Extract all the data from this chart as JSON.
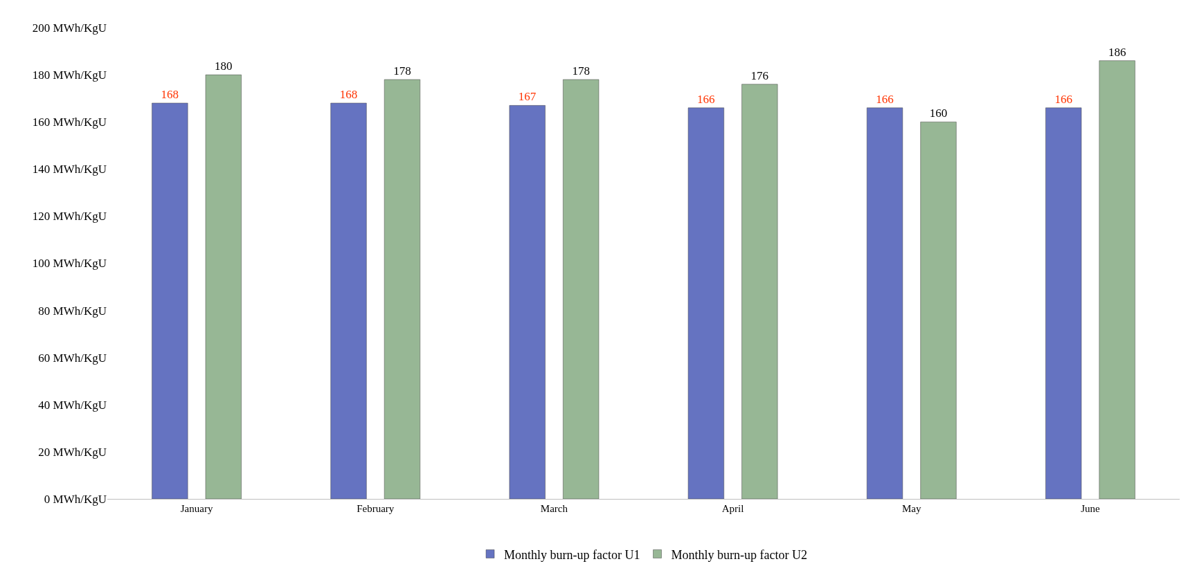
{
  "chart_data": {
    "type": "bar",
    "categories": [
      "January",
      "February",
      "March",
      "April",
      "May",
      "June"
    ],
    "series": [
      {
        "name": "Monthly burn-up factor U1",
        "color": "#6573c1",
        "values": [
          168,
          168,
          167,
          166,
          166,
          166
        ]
      },
      {
        "name": "Monthly burn-up factor U2",
        "color": "#97b795",
        "values": [
          180,
          178,
          178,
          176,
          160,
          186
        ]
      }
    ],
    "ylim": [
      0,
      200
    ],
    "yticks": [
      {
        "value": 0,
        "label": "0 MWh/KgU"
      },
      {
        "value": 20,
        "label": "20 MWh/KgU"
      },
      {
        "value": 40,
        "label": "40 MWh/KgU"
      },
      {
        "value": 60,
        "label": "60 MWh/KgU"
      },
      {
        "value": 80,
        "label": "80 MWh/KgU"
      },
      {
        "value": 100,
        "label": "100 MWh/KgU"
      },
      {
        "value": 120,
        "label": "120 MWh/KgU"
      },
      {
        "value": 140,
        "label": "140 MWh/KgU"
      },
      {
        "value": 160,
        "label": "160 MWh/KgU"
      },
      {
        "value": 180,
        "label": "180 MWh/KgU"
      },
      {
        "value": 200,
        "label": "200 MWh/KgU"
      }
    ],
    "data_labels": true,
    "legend": "bottom"
  }
}
